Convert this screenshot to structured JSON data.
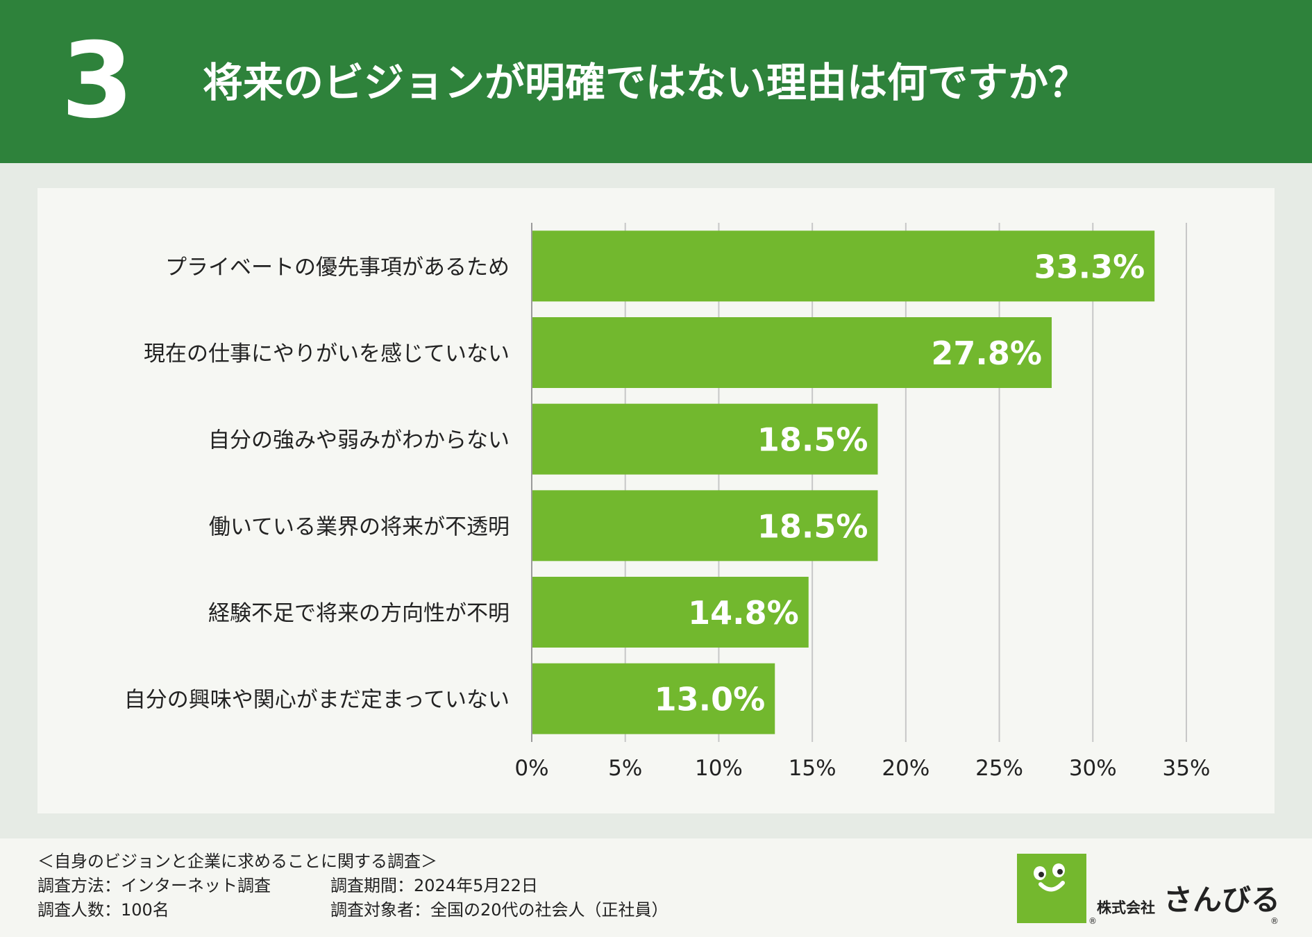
{
  "header": {
    "number": "3",
    "title": "将来のビジョンが明確ではない理由は何ですか？"
  },
  "chart_data": {
    "type": "bar",
    "orientation": "horizontal",
    "categories": [
      "プライベートの優先事項があるため",
      "現在の仕事にやりがいを感じていない",
      "自分の強みや弱みがわからない",
      "働いている業界の将来が不透明",
      "経験不足で将来の方向性が不明",
      "自分の興味や関心がまだ定まっていない"
    ],
    "values": [
      33.3,
      27.8,
      18.5,
      18.5,
      14.8,
      13.0
    ],
    "value_labels": [
      "33.3%",
      "27.8%",
      "18.5%",
      "18.5%",
      "14.8%",
      "13.0%"
    ],
    "xlim": [
      0,
      35
    ],
    "xticks": [
      0,
      5,
      10,
      15,
      20,
      25,
      30,
      35
    ],
    "xtick_labels": [
      "0%",
      "5%",
      "10%",
      "15%",
      "20%",
      "25%",
      "30%",
      "35%"
    ],
    "grid": true,
    "bar_color": "#72b82e",
    "grid_color": "#c7c7c7"
  },
  "footer": {
    "survey_name": "＜自身のビジョンと企業に求めることに関する調査＞",
    "method": "調査方法：インターネット調査",
    "period": "調査期間：2024年5月22日",
    "count": "調査人数：100名",
    "target": "調査対象者：全国の20代の社会人（正社員）"
  },
  "logo": {
    "company_type": "株式会社",
    "name": "さんびる",
    "reg_mark": "®"
  },
  "colors": {
    "header_bg": "#2e823b",
    "logo_green": "#74b82e"
  }
}
